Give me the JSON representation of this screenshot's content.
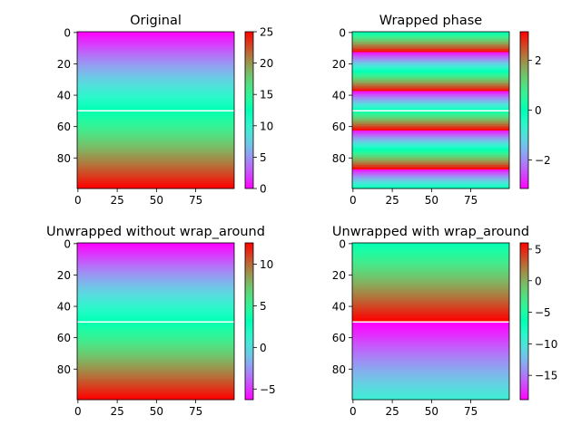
{
  "chart_data": [
    {
      "type": "heatmap",
      "title": "Original",
      "colormap": "rainbow",
      "x_range": [
        0,
        99
      ],
      "y_range": [
        0,
        99
      ],
      "y_inverted": true,
      "x_ticks": [
        "0",
        "25",
        "50",
        "75"
      ],
      "y_ticks": [
        "0",
        "20",
        "40",
        "60",
        "80"
      ],
      "value_model": "linear_in_row",
      "row_values": {
        "row_0": 0.0,
        "row_99": 25.0
      },
      "masked_row": 50,
      "clim": [
        0,
        25
      ],
      "colorbar_ticks": [
        "0",
        "5",
        "10",
        "15",
        "20",
        "25"
      ]
    },
    {
      "type": "heatmap",
      "title": "Wrapped phase",
      "colormap": "rainbow",
      "x_range": [
        0,
        99
      ],
      "y_range": [
        0,
        99
      ],
      "y_inverted": true,
      "x_ticks": [
        "0",
        "25",
        "50",
        "75"
      ],
      "y_ticks": [
        "0",
        "20",
        "40",
        "60",
        "80"
      ],
      "value_model": "wrapped_linear_in_row",
      "row_values": {
        "row_0": 0.0,
        "row_99": 25.0
      },
      "masked_row": 50,
      "clim": [
        -3.14,
        3.14
      ],
      "colorbar_ticks": [
        "−2",
        "0",
        "2"
      ]
    },
    {
      "type": "heatmap",
      "title": "Unwrapped without wrap_around",
      "colormap": "rainbow",
      "x_range": [
        0,
        99
      ],
      "y_range": [
        0,
        99
      ],
      "y_inverted": true,
      "x_ticks": [
        "0",
        "25",
        "50",
        "75"
      ],
      "y_ticks": [
        "0",
        "20",
        "40",
        "60",
        "80"
      ],
      "value_model": "linear_in_row",
      "row_values": {
        "row_0": -6.28,
        "row_99": 12.57
      },
      "masked_row": 50,
      "clim": [
        -6.28,
        12.57
      ],
      "colorbar_ticks": [
        "−5",
        "0",
        "5",
        "10"
      ]
    },
    {
      "type": "heatmap",
      "title": "Unwrapped with wrap_around",
      "colormap": "rainbow",
      "x_range": [
        0,
        99
      ],
      "y_range": [
        0,
        99
      ],
      "y_inverted": true,
      "x_ticks": [
        "0",
        "25",
        "50",
        "75"
      ],
      "y_ticks": [
        "0",
        "20",
        "40",
        "60",
        "80"
      ],
      "value_model": "piecewise_linear_in_row",
      "row_values": {
        "row_0": -6.28,
        "row_49": 6.0,
        "row_51": -18.85,
        "row_99": -9.42
      },
      "masked_row": 50,
      "clim": [
        -18.85,
        6.0
      ],
      "colorbar_ticks": [
        "−15",
        "−10",
        "−5",
        "0",
        "5"
      ]
    }
  ]
}
